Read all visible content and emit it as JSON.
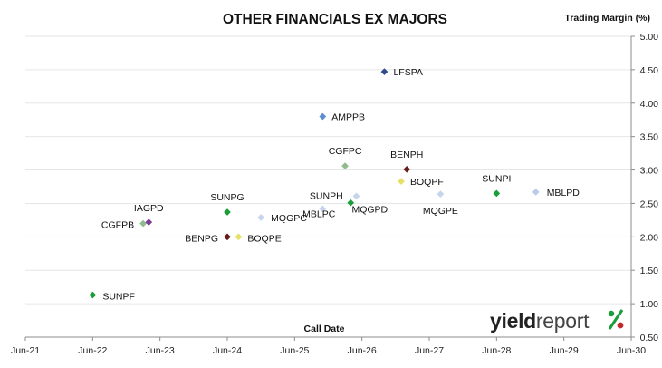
{
  "chart_data": {
    "type": "scatter",
    "title": "OTHER FINANCIALS EX MAJORS",
    "ylabel": "Trading Margin (%)",
    "xlabel": "Call Date",
    "x_ticks": [
      "Jun-21",
      "Jun-22",
      "Jun-23",
      "Jun-24",
      "Jun-25",
      "Jun-26",
      "Jun-27",
      "Jun-28",
      "Jun-29",
      "Jun-30"
    ],
    "y_ticks": [
      "0.50",
      "1.00",
      "1.50",
      "2.00",
      "2.50",
      "3.00",
      "3.50",
      "4.00",
      "4.50",
      "5.00"
    ],
    "xlim": [
      "2021-06",
      "2030-06"
    ],
    "ylim": [
      0.5,
      5.0
    ],
    "grid": "horizontal",
    "y_axis_side": "right",
    "points": [
      {
        "label": "LFSPA",
        "x": "2026-10",
        "y": 4.47,
        "color": "#2e4a8b"
      },
      {
        "label": "AMPPB",
        "x": "2025-11",
        "y": 3.8,
        "color": "#5b8fd1"
      },
      {
        "label": "CGFPC",
        "x": "2026-03",
        "y": 3.06,
        "color": "#8fbc8f"
      },
      {
        "label": "BENPH",
        "x": "2027-02",
        "y": 3.01,
        "color": "#6b1a1a"
      },
      {
        "label": "BOQPF",
        "x": "2027-01",
        "y": 2.83,
        "color": "#e6e066"
      },
      {
        "label": "SUNPI",
        "x": "2028-06",
        "y": 2.65,
        "color": "#1a9e3a"
      },
      {
        "label": "MBLPD",
        "x": "2029-01",
        "y": 2.67,
        "color": "#b8cbe8"
      },
      {
        "label": "MQGPE",
        "x": "2027-08",
        "y": 2.64,
        "color": "#c6d4ec"
      },
      {
        "label": "MQGPD",
        "x": "2026-05",
        "y": 2.61,
        "color": "#c6d4ec"
      },
      {
        "label": "SUNPH",
        "x": "2025-11",
        "y": 2.42,
        "color": "#c6d4ec"
      },
      {
        "label": "MBLPC",
        "x": "2026-04",
        "y": 2.51,
        "color": "#1a9e3a"
      },
      {
        "label": "MQGPC",
        "x": "2024-12",
        "y": 2.29,
        "color": "#c6d4ec"
      },
      {
        "label": "SUNPG",
        "x": "2024-06",
        "y": 2.37,
        "color": "#1a9e3a"
      },
      {
        "label": "IAGPD",
        "x": "2023-04",
        "y": 2.22,
        "color": "#7d3c98"
      },
      {
        "label": "CGFPB",
        "x": "2023-03",
        "y": 2.2,
        "color": "#8fbc8f"
      },
      {
        "label": "BENPG",
        "x": "2024-06",
        "y": 2.0,
        "color": "#6b1a1a"
      },
      {
        "label": "BOQPE",
        "x": "2024-08",
        "y": 2.0,
        "color": "#e6e066"
      },
      {
        "label": "SUNPF",
        "x": "2022-06",
        "y": 1.13,
        "color": "#1a9e3a"
      }
    ]
  },
  "brand": {
    "text_bold": "yield",
    "text_light": "report",
    "percent": "%",
    "color_dark": "#222222",
    "color_light": "#444444",
    "percent_color": "#1a9e3a",
    "percent_dot_color": "#c0282a"
  }
}
